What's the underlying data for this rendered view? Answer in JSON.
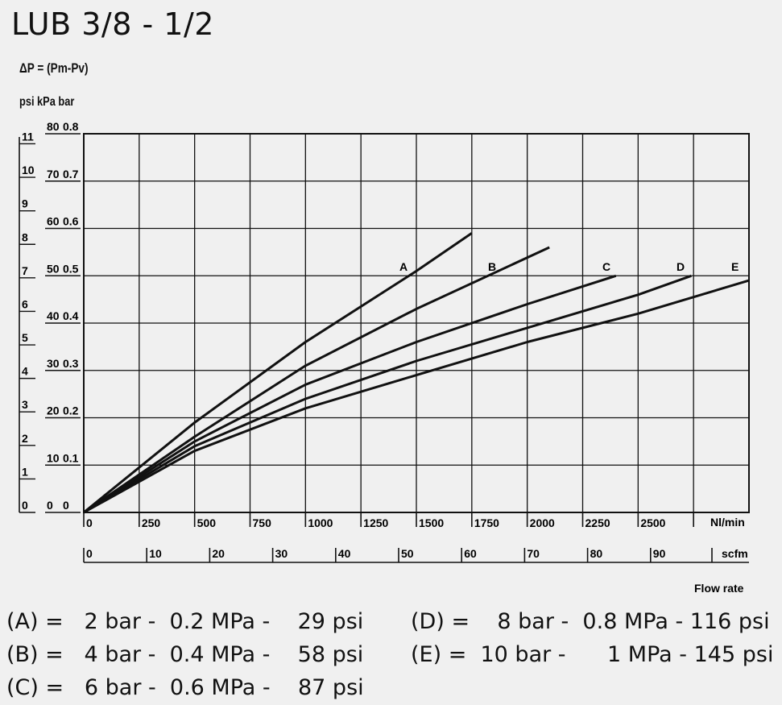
{
  "title": "LUB 3/8 - 1/2",
  "formula": "ΔP = (Pm-Pv)",
  "units_label": "psi  kPa bar",
  "chart_data": {
    "type": "line",
    "title": "LUB 3/8 - 1/2",
    "xlabel": "Flow rate",
    "x_unit_primary": "Nl/min",
    "x_unit_secondary": "scfm",
    "x_ticks_primary": [
      "0",
      "250",
      "500",
      "750",
      "1000",
      "1250",
      "1500",
      "1750",
      "2000",
      "2250",
      "2500"
    ],
    "x_ticks_secondary": [
      "0",
      "10",
      "20",
      "30",
      "40",
      "50",
      "60",
      "70",
      "80",
      "90"
    ],
    "y_ticks_psi": [
      "0",
      "1",
      "2",
      "3",
      "4",
      "5",
      "6",
      "7",
      "8",
      "9",
      "10",
      "11"
    ],
    "y_ticks_kpa": [
      "0",
      "10",
      "20",
      "30",
      "40",
      "50",
      "60",
      "70",
      "80"
    ],
    "y_ticks_bar": [
      "0",
      "0.1",
      "0.2",
      "0.3",
      "0.4",
      "0.5",
      "0.6",
      "0.7",
      "0.8"
    ],
    "xlim": [
      0,
      3000
    ],
    "ylim": [
      0,
      80
    ],
    "grid": true,
    "series": [
      {
        "name": "A",
        "x": [
          0,
          500,
          1000,
          1500,
          1750
        ],
        "y": [
          0,
          19,
          36,
          51,
          59
        ]
      },
      {
        "name": "B",
        "x": [
          0,
          500,
          1000,
          1500,
          2100
        ],
        "y": [
          0,
          16,
          31,
          43,
          56
        ]
      },
      {
        "name": "C",
        "x": [
          0,
          500,
          1000,
          1500,
          2000,
          2400
        ],
        "y": [
          0,
          15,
          27,
          36,
          44,
          50
        ]
      },
      {
        "name": "D",
        "x": [
          0,
          500,
          1000,
          1500,
          2000,
          2500,
          2740
        ],
        "y": [
          0,
          14,
          24,
          32,
          39,
          46,
          50
        ]
      },
      {
        "name": "E",
        "x": [
          0,
          500,
          1000,
          1500,
          2000,
          2500,
          3000
        ],
        "y": [
          0,
          13,
          22,
          29,
          36,
          42,
          49
        ]
      }
    ]
  },
  "legend": [
    {
      "text": "(A) =   2 bar -  0.2 MPa -    29 psi"
    },
    {
      "text": "(B) =   4 bar -  0.4 MPa -    58 psi"
    },
    {
      "text": "(C) =   6 bar -  0.6 MPa -    87 psi"
    },
    {
      "text": "(D) =    8 bar -  0.8 MPa - 116 psi"
    },
    {
      "text": "(E) =  10 bar -      1 MPa - 145 psi"
    }
  ]
}
